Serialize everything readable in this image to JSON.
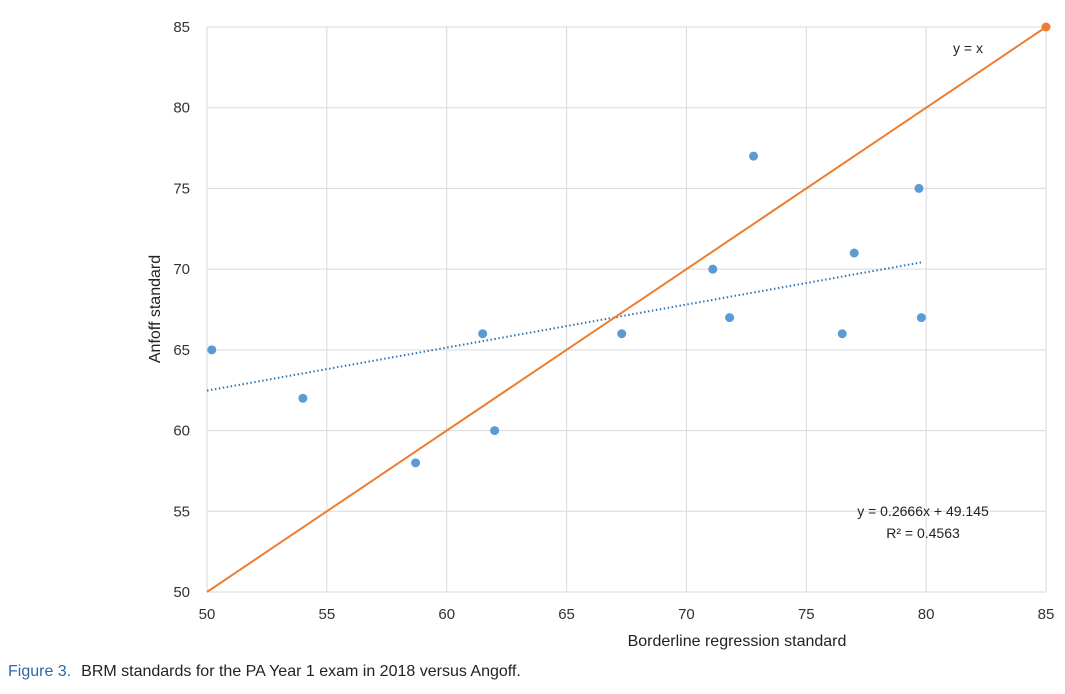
{
  "caption": {
    "label": "Figure 3.",
    "text": "BRM standards for the PA Year 1 exam in 2018 versus Angoff."
  },
  "chart_data": {
    "type": "scatter",
    "title": "",
    "xlabel": "Borderline regression standard",
    "ylabel": "Anfoff standard",
    "xlim": [
      50,
      85
    ],
    "ylim": [
      50,
      85
    ],
    "x_ticks": [
      50,
      55,
      60,
      65,
      70,
      75,
      80,
      85
    ],
    "y_ticks": [
      50,
      55,
      60,
      65,
      70,
      75,
      80,
      85
    ],
    "grid": true,
    "series": [
      {
        "type": "scatter",
        "color": "#5b9bd5",
        "points": [
          {
            "x": 50.2,
            "y": 65
          },
          {
            "x": 54.0,
            "y": 62
          },
          {
            "x": 58.7,
            "y": 58
          },
          {
            "x": 61.5,
            "y": 66
          },
          {
            "x": 62.0,
            "y": 60
          },
          {
            "x": 67.3,
            "y": 66
          },
          {
            "x": 71.1,
            "y": 70
          },
          {
            "x": 71.8,
            "y": 67
          },
          {
            "x": 72.8,
            "y": 77
          },
          {
            "x": 76.5,
            "y": 66
          },
          {
            "x": 77.0,
            "y": 71
          },
          {
            "x": 79.7,
            "y": 75
          },
          {
            "x": 79.8,
            "y": 67
          }
        ]
      },
      {
        "type": "trendline",
        "color": "#2e75b6",
        "style": "dotted",
        "slope": 0.2666,
        "intercept": 49.145,
        "x_range": [
          50,
          79.8
        ]
      },
      {
        "type": "line",
        "color": "#ed7d31",
        "points": [
          {
            "x": 50,
            "y": 50
          },
          {
            "x": 85,
            "y": 85
          }
        ],
        "end_marker": true
      }
    ],
    "annotations": {
      "identity_label": "y = x",
      "equation": "y = 0.2666x + 49.145",
      "r_squared": "R² = 0.4563"
    }
  }
}
